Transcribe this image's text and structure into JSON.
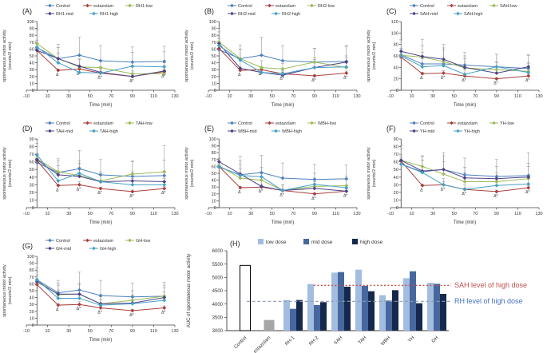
{
  "figure": {
    "background": "#ffffff",
    "colors": {
      "control": "#4f81bd",
      "estazolam": "#ab403d",
      "low": "#9bbb59",
      "mid": "#4e4487",
      "high": "#45a0c5",
      "err": "#9a9a9a",
      "axis": "#3f3f3f",
      "text": "#333333",
      "bar_low": "#a3bde0",
      "bar_mid": "#46689e",
      "bar_high": "#16294d",
      "bar_control_fill": "#ffffff",
      "bar_control_stroke": "#000000",
      "bar_estazolam": "#a6a6a6",
      "ref_sah": "#c0504d",
      "ref_rh_line": "#8e9bb3",
      "ref_rh_label": "#4472c4"
    },
    "xlabel": "Time (min)",
    "ylabel_lines": [
      "spontaneous motor activity",
      "(counts/2 min)"
    ],
    "xlim": [
      -10,
      130
    ],
    "xstep": 20,
    "x": [
      0,
      20,
      40,
      60,
      90,
      120
    ]
  },
  "chart_data": [
    {
      "id": "A",
      "label": "(A)",
      "type": "line",
      "ylim": [
        0,
        100
      ],
      "ystep": 10,
      "title": "",
      "xlabel": "Time (min)",
      "ylabel": "spontaneous motor activity (counts/2 min)",
      "x": [
        0,
        20,
        40,
        60,
        90,
        120
      ],
      "series": [
        {
          "name": "Control",
          "color": "control",
          "values": [
            62,
            46,
            51,
            43,
            41,
            42
          ],
          "err": [
            26,
            21,
            26,
            22,
            22,
            22
          ]
        },
        {
          "name": "estazolam",
          "color": "estazolam",
          "values": [
            58,
            29,
            31,
            25,
            20,
            27
          ],
          "err": [
            4,
            2,
            4,
            2,
            2,
            3
          ],
          "sig": [
            "",
            "Δ",
            "Δ*",
            "Δ*",
            "Δ*",
            "Δ*"
          ]
        },
        {
          "name": "RH1-low",
          "color": "low",
          "values": [
            68,
            46,
            34,
            33,
            24,
            24
          ],
          "err": [
            5,
            16,
            12,
            10,
            10,
            12
          ]
        },
        {
          "name": "RH1-mid",
          "color": "mid",
          "values": [
            58,
            46,
            35,
            26,
            20,
            28
          ],
          "err": [
            30,
            16,
            10,
            8,
            8,
            12
          ]
        },
        {
          "name": "RH1-high",
          "color": "high",
          "values": [
            63,
            40,
            26,
            25,
            35,
            34
          ],
          "err": [
            10,
            14,
            6,
            6,
            20,
            22
          ]
        }
      ]
    },
    {
      "id": "B",
      "label": "(B)",
      "type": "line",
      "ylim": [
        0,
        100
      ],
      "ystep": 10,
      "title": "",
      "xlabel": "Time (min)",
      "ylabel": "spontaneous motor activity (counts/2 min)",
      "x": [
        0,
        20,
        40,
        60,
        90,
        120
      ],
      "series": [
        {
          "name": "Control",
          "color": "control",
          "values": [
            59,
            46,
            51,
            43,
            41,
            42
          ],
          "err": [
            26,
            20,
            26,
            22,
            20,
            22
          ]
        },
        {
          "name": "estazolam",
          "color": "estazolam",
          "values": [
            61,
            29,
            30,
            24,
            21,
            25
          ],
          "err": [
            4,
            2,
            3,
            2,
            2,
            3
          ],
          "sig": [
            "",
            "Δ",
            "Δ*",
            "Δ*",
            "Δ*",
            "Δ*"
          ]
        },
        {
          "name": "RH2-low",
          "color": "low",
          "values": [
            70,
            46,
            33,
            31,
            41,
            33
          ],
          "err": [
            8,
            14,
            10,
            8,
            20,
            14
          ]
        },
        {
          "name": "RH2-mid",
          "color": "mid",
          "values": [
            68,
            32,
            26,
            22,
            33,
            41
          ],
          "err": [
            22,
            12,
            8,
            6,
            12,
            24
          ]
        },
        {
          "name": "RH2-high",
          "color": "high",
          "values": [
            65,
            44,
            26,
            24,
            33,
            34
          ],
          "err": [
            10,
            16,
            6,
            6,
            14,
            16
          ]
        }
      ]
    },
    {
      "id": "C",
      "label": "(C)",
      "type": "line",
      "ylim": [
        0,
        120
      ],
      "ystep": 20,
      "title": "",
      "xlabel": "Time (min)",
      "ylabel": "spontaneous motor activity (counts/2 min)",
      "x": [
        0,
        20,
        40,
        60,
        90,
        120
      ],
      "series": [
        {
          "name": "Control",
          "color": "control",
          "values": [
            62,
            46,
            46,
            44,
            41,
            38
          ],
          "err": [
            26,
            20,
            24,
            22,
            22,
            24
          ]
        },
        {
          "name": "estazolam",
          "color": "estazolam",
          "values": [
            58,
            29,
            30,
            25,
            20,
            25
          ],
          "err": [
            4,
            2,
            4,
            2,
            2,
            3
          ],
          "sig": [
            "",
            "Δ",
            "Δ*",
            "Δ*",
            "Δ*",
            "Δ*"
          ]
        },
        {
          "name": "SAH-low",
          "color": "low",
          "values": [
            61,
            58,
            50,
            39,
            36,
            33
          ],
          "err": [
            12,
            20,
            24,
            16,
            14,
            14
          ]
        },
        {
          "name": "SAH-mid",
          "color": "mid",
          "values": [
            68,
            59,
            54,
            40,
            30,
            41
          ],
          "err": [
            20,
            30,
            26,
            20,
            18,
            20
          ]
        },
        {
          "name": "SAH-high",
          "color": "high",
          "values": [
            60,
            41,
            43,
            28,
            41,
            31
          ],
          "err": [
            12,
            14,
            12,
            8,
            22,
            18
          ]
        }
      ]
    },
    {
      "id": "D",
      "label": "(D)",
      "type": "line",
      "ylim": [
        0,
        90
      ],
      "ystep": 10,
      "title": "",
      "xlabel": "Time (min)",
      "ylabel": "spontaneous motor activity (counts/2 min)",
      "x": [
        0,
        20,
        40,
        60,
        90,
        120
      ],
      "series": [
        {
          "name": "Control",
          "color": "control",
          "values": [
            59,
            46,
            51,
            43,
            41,
            42
          ],
          "err": [
            25,
            18,
            24,
            20,
            20,
            20
          ]
        },
        {
          "name": "estazolam",
          "color": "estazolam",
          "values": [
            62,
            29,
            30,
            25,
            21,
            25
          ],
          "err": [
            4,
            2,
            4,
            2,
            2,
            3
          ],
          "sig": [
            "",
            "Δ",
            "Δ*",
            "Δ*",
            "Δ*",
            "Δ*"
          ]
        },
        {
          "name": "TAH-low",
          "color": "low",
          "values": [
            64,
            47,
            42,
            35,
            44,
            47
          ],
          "err": [
            6,
            14,
            16,
            12,
            16,
            34
          ]
        },
        {
          "name": "TAH-mid",
          "color": "mid",
          "values": [
            63,
            43,
            41,
            34,
            35,
            34
          ],
          "err": [
            8,
            12,
            12,
            10,
            12,
            12
          ]
        },
        {
          "name": "TAH-high",
          "color": "high",
          "values": [
            69,
            35,
            45,
            34,
            30,
            30
          ],
          "err": [
            20,
            10,
            16,
            10,
            8,
            8
          ]
        }
      ]
    },
    {
      "id": "E",
      "label": "(E)",
      "type": "line",
      "ylim": [
        0,
        100
      ],
      "ystep": 10,
      "title": "",
      "xlabel": "Time (min)",
      "ylabel": "spontaneous motor activity (counts/2 min)",
      "x": [
        0,
        20,
        40,
        60,
        90,
        120
      ],
      "series": [
        {
          "name": "Control",
          "color": "control",
          "values": [
            59,
            48,
            51,
            43,
            41,
            42
          ],
          "err": [
            26,
            20,
            25,
            22,
            22,
            20
          ]
        },
        {
          "name": "estazolam",
          "color": "estazolam",
          "values": [
            60,
            29,
            30,
            25,
            20,
            24
          ],
          "err": [
            4,
            2,
            4,
            2,
            2,
            3
          ],
          "sig": [
            "",
            "Δ",
            "Δ*",
            "Δ*",
            "Δ*",
            "Δ*"
          ]
        },
        {
          "name": "WBH-low",
          "color": "low",
          "values": [
            61,
            43,
            40,
            25,
            31,
            32
          ],
          "err": [
            10,
            14,
            12,
            8,
            12,
            14
          ]
        },
        {
          "name": "WBH-mid",
          "color": "mid",
          "values": [
            67,
            49,
            31,
            25,
            28,
            24
          ],
          "err": [
            22,
            26,
            10,
            8,
            10,
            8
          ]
        },
        {
          "name": "WBH-high",
          "color": "high",
          "values": [
            60,
            47,
            45,
            25,
            34,
            29
          ],
          "err": [
            12,
            16,
            14,
            8,
            16,
            12
          ]
        }
      ]
    },
    {
      "id": "F",
      "label": "(F)",
      "type": "line",
      "ylim": [
        0,
        90
      ],
      "ystep": 10,
      "title": "",
      "xlabel": "Time (min)",
      "ylabel": "spontaneous motor activity (counts/2 min)",
      "x": [
        0,
        20,
        40,
        60,
        90,
        120
      ],
      "series": [
        {
          "name": "Control",
          "color": "control",
          "values": [
            57,
            47,
            50,
            43,
            41,
            42
          ],
          "err": [
            24,
            20,
            22,
            22,
            22,
            30
          ]
        },
        {
          "name": "estazolam",
          "color": "estazolam",
          "values": [
            61,
            29,
            30,
            24,
            21,
            26
          ],
          "err": [
            4,
            2,
            4,
            2,
            2,
            3
          ],
          "sig": [
            "",
            "Δ",
            "Δ*",
            "Δ*",
            "Δ*",
            "Δ*"
          ]
        },
        {
          "name": "YH-low",
          "color": "low",
          "values": [
            62,
            54,
            44,
            34,
            34,
            38
          ],
          "err": [
            6,
            14,
            16,
            12,
            12,
            16
          ]
        },
        {
          "name": "YH-mid",
          "color": "mid",
          "values": [
            62,
            48,
            50,
            39,
            38,
            40
          ],
          "err": [
            8,
            14,
            18,
            14,
            16,
            18
          ]
        },
        {
          "name": "YH-high",
          "color": "high",
          "values": [
            57,
            46,
            30,
            24,
            29,
            31
          ],
          "err": [
            20,
            16,
            8,
            6,
            10,
            12
          ]
        }
      ]
    },
    {
      "id": "G",
      "label": "(G)",
      "type": "line",
      "ylim": [
        0,
        100
      ],
      "ystep": 10,
      "title": "",
      "xlabel": "Time (min)",
      "ylabel": "spontaneous motor activity (counts/2 min)",
      "x": [
        0,
        20,
        40,
        60,
        90,
        120
      ],
      "series": [
        {
          "name": "Control",
          "color": "control",
          "values": [
            66,
            47,
            51,
            43,
            41,
            42
          ],
          "err": [
            24,
            18,
            26,
            22,
            20,
            20
          ]
        },
        {
          "name": "estazolam",
          "color": "estazolam",
          "values": [
            59,
            29,
            30,
            25,
            21,
            25
          ],
          "err": [
            4,
            2,
            4,
            2,
            2,
            3
          ],
          "sig": [
            "",
            "Δ",
            "Δ*",
            "Δ*",
            "Δ*",
            "Δ*"
          ]
        },
        {
          "name": "GH-low",
          "color": "low",
          "values": [
            65,
            44,
            45,
            31,
            36,
            42
          ],
          "err": [
            8,
            14,
            16,
            12,
            14,
            16
          ]
        },
        {
          "name": "GH-mid",
          "color": "mid",
          "values": [
            63,
            45,
            45,
            31,
            32,
            40
          ],
          "err": [
            20,
            16,
            14,
            10,
            12,
            14
          ]
        },
        {
          "name": "GH-high",
          "color": "high",
          "values": [
            66,
            39,
            39,
            29,
            31,
            36
          ],
          "err": [
            12,
            12,
            12,
            8,
            10,
            12
          ]
        }
      ]
    },
    {
      "id": "H",
      "label": "(H)",
      "type": "bar",
      "ylabel": "AUC of spontaneous motor activity",
      "ylim": [
        3000,
        6000
      ],
      "ystep": 500,
      "legend": [
        {
          "label": "low dose",
          "color": "bar_low"
        },
        {
          "label": "mid dose",
          "color": "bar_mid"
        },
        {
          "label": "high dose",
          "color": "bar_high"
        }
      ],
      "categories": [
        "Control",
        "estazolam",
        "RH-1",
        "RH-2",
        "SAH",
        "TAH",
        "WBH",
        "YH",
        "GH"
      ],
      "single_bars": [
        {
          "category": "Control",
          "value": 5450,
          "style": "control"
        },
        {
          "category": "estazolam",
          "value": 3400,
          "style": "estazolam"
        }
      ],
      "groups": [
        {
          "name": "RH-1",
          "low": 4150,
          "mid": 3820,
          "high": 4150
        },
        {
          "name": "RH-2",
          "low": 4750,
          "mid": 3960,
          "high": 4070
        },
        {
          "name": "SAH",
          "low": 5180,
          "mid": 5200,
          "high": 4650
        },
        {
          "name": "TAH",
          "low": 5290,
          "mid": 4680,
          "high": 4480
        },
        {
          "name": "WBH",
          "low": 4330,
          "mid": 4130,
          "high": 4520
        },
        {
          "name": "YH",
          "low": 4970,
          "mid": 5230,
          "high": 4030
        },
        {
          "name": "GH",
          "low": 4800,
          "mid": 4760,
          "high": 4380
        }
      ],
      "ref_lines": [
        {
          "label": "SAH level of high dose",
          "value": 4700,
          "line_color": "#c0504d",
          "label_color": "#c0504d",
          "dash": "dotted"
        },
        {
          "label": "RH level of high dose",
          "value": 4100,
          "line_color": "#8e9bb3",
          "label_color": "#4472c4",
          "dash": "dashed"
        }
      ]
    }
  ]
}
